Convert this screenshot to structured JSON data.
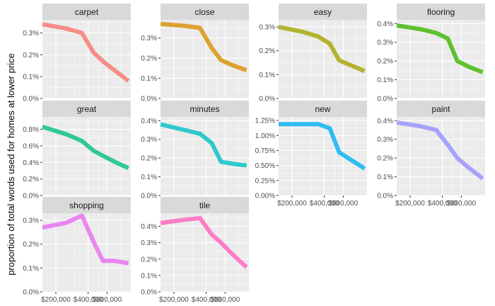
{
  "chart_data": {
    "type": "line",
    "facet": "wrap",
    "ylabel": "proportion of total words used for homes at lower price",
    "xlabel": "",
    "x_scale": "log",
    "x_tick_labels": [
      "$200,000",
      "$400,000",
      "$600,000"
    ],
    "x_tick_values": [
      200000,
      400000,
      600000
    ],
    "xlim": [
      150000,
      1000000
    ],
    "x": [
      150000,
      250000,
      350000,
      450000,
      550000,
      700000,
      950000
    ],
    "grid": true,
    "legend": "none",
    "panel_background": "#ebebeb",
    "strip_background": "#d9d9d9",
    "panels": [
      {
        "name": "carpet",
        "color": "#F8766D",
        "ylim": [
          0,
          0.0036
        ],
        "ticks": [
          0,
          0.001,
          0.002,
          0.003
        ],
        "tick_labels": [
          "0.0%",
          "0.1%",
          "0.2%",
          "0.3%"
        ],
        "values": [
          0.0034,
          0.0032,
          0.003,
          0.0021,
          0.0017,
          0.0013,
          0.0008
        ]
      },
      {
        "name": "close",
        "color": "#D89000",
        "ylim": [
          0,
          0.0039
        ],
        "ticks": [
          0,
          0.001,
          0.002,
          0.003
        ],
        "tick_labels": [
          "0.0%",
          "0.1%",
          "0.2%",
          "0.3%"
        ],
        "values": [
          0.0037,
          0.0036,
          0.0035,
          0.0025,
          0.0019,
          0.00165,
          0.0014
        ]
      },
      {
        "name": "easy",
        "color": "#A3A500",
        "ylim": [
          0,
          0.0033
        ],
        "ticks": [
          0,
          0.001,
          0.002,
          0.003
        ],
        "tick_labels": [
          "0.0%",
          "0.1%",
          "0.2%",
          "0.3%"
        ],
        "values": [
          0.003,
          0.0028,
          0.0026,
          0.0023,
          0.0016,
          0.0014,
          0.00115
        ]
      },
      {
        "name": "flooring",
        "color": "#39B600",
        "ylim": [
          0,
          0.0042
        ],
        "ticks": [
          0,
          0.001,
          0.002,
          0.003,
          0.004
        ],
        "tick_labels": [
          "0.0%",
          "0.1%",
          "0.2%",
          "0.3%",
          "0.4%"
        ],
        "values": [
          0.0039,
          0.0037,
          0.0035,
          0.0032,
          0.002,
          0.0017,
          0.0014
        ]
      },
      {
        "name": "great",
        "color": "#00BF7D",
        "ylim": [
          0,
          0.0095
        ],
        "ticks": [
          0,
          0.002,
          0.004,
          0.006,
          0.008
        ],
        "tick_labels": [
          "0.0%",
          "0.2%",
          "0.4%",
          "0.6%",
          "0.8%"
        ],
        "values": [
          0.0083,
          0.0074,
          0.0066,
          0.0054,
          0.0048,
          0.0041,
          0.0033
        ]
      },
      {
        "name": "minutes",
        "color": "#00BFC4",
        "ylim": [
          0,
          0.0042
        ],
        "ticks": [
          0,
          0.001,
          0.002,
          0.003,
          0.004
        ],
        "tick_labels": [
          "0.0%",
          "0.1%",
          "0.2%",
          "0.3%",
          "0.4%"
        ],
        "values": [
          0.0038,
          0.0035,
          0.0033,
          0.0028,
          0.0018,
          0.0017,
          0.0016
        ]
      },
      {
        "name": "new",
        "color": "#00B0F6",
        "ylim": [
          0,
          0.0131
        ],
        "ticks": [
          0,
          0.0025,
          0.005,
          0.0075,
          0.01,
          0.0125
        ],
        "tick_labels": [
          "0.00%",
          "0.25%",
          "0.50%",
          "0.75%",
          "1.00%",
          "1.25%"
        ],
        "values": [
          0.0119,
          0.0119,
          0.0119,
          0.0112,
          0.0072,
          0.006,
          0.0045
        ]
      },
      {
        "name": "paint",
        "color": "#9590FF",
        "ylim": [
          0,
          0.0042
        ],
        "ticks": [
          0,
          0.001,
          0.002,
          0.003,
          0.004
        ],
        "tick_labels": [
          "0.0%",
          "0.1%",
          "0.2%",
          "0.3%",
          "0.4%"
        ],
        "values": [
          0.0039,
          0.0037,
          0.0035,
          0.0027,
          0.002,
          0.0015,
          0.0009
        ]
      },
      {
        "name": "shopping",
        "color": "#E76BF3",
        "ylim": [
          0,
          0.0033
        ],
        "ticks": [
          0,
          0.001,
          0.002,
          0.003
        ],
        "tick_labels": [
          "0.0%",
          "0.1%",
          "0.2%",
          "0.3%"
        ],
        "values": [
          0.0027,
          0.0029,
          0.0032,
          0.0021,
          0.0013,
          0.0013,
          0.0012
        ]
      },
      {
        "name": "tile",
        "color": "#FF62BC",
        "ylim": [
          0,
          0.0048
        ],
        "ticks": [
          0,
          0.001,
          0.002,
          0.003,
          0.004
        ],
        "tick_labels": [
          "0.0%",
          "0.1%",
          "0.2%",
          "0.3%",
          "0.4%"
        ],
        "values": [
          0.0042,
          0.0044,
          0.0045,
          0.0035,
          0.003,
          0.0023,
          0.0015
        ]
      }
    ]
  }
}
